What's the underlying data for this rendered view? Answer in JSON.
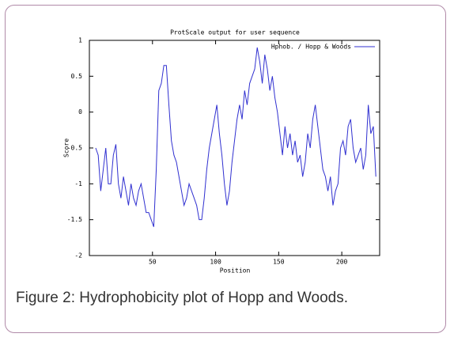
{
  "chart_data": {
    "type": "line",
    "title": "ProtScale output for user sequence",
    "xlabel": "Position",
    "ylabel": "Score",
    "caption": "Figure 2: Hydrophobicity plot of Hopp and Woods.",
    "xlim": [
      0,
      230
    ],
    "ylim": [
      -2,
      1
    ],
    "xticks": [
      50,
      100,
      150,
      200
    ],
    "yticks": [
      1,
      0.5,
      0,
      -0.5,
      -1,
      -1.5,
      -2
    ],
    "legend": "top-right",
    "series": [
      {
        "name": "Hphob. / Hopp & Woods",
        "color": "#3030d0",
        "x": [
          5,
          7,
          9,
          11,
          13,
          15,
          17,
          19,
          21,
          23,
          25,
          27,
          29,
          31,
          33,
          35,
          37,
          39,
          41,
          43,
          45,
          47,
          49,
          51,
          53,
          55,
          57,
          59,
          61,
          63,
          65,
          67,
          69,
          71,
          73,
          75,
          77,
          79,
          81,
          83,
          85,
          87,
          89,
          91,
          93,
          95,
          97,
          99,
          101,
          103,
          105,
          107,
          109,
          111,
          113,
          115,
          117,
          119,
          121,
          123,
          125,
          127,
          129,
          131,
          133,
          135,
          137,
          139,
          141,
          143,
          145,
          147,
          149,
          151,
          153,
          155,
          157,
          159,
          161,
          163,
          165,
          167,
          169,
          171,
          173,
          175,
          177,
          179,
          181,
          183,
          185,
          187,
          189,
          191,
          193,
          195,
          197,
          199,
          201,
          203,
          205,
          207,
          209,
          211,
          213,
          215,
          217,
          219,
          221,
          223,
          225,
          227
        ],
        "values": [
          -0.5,
          -0.6,
          -1.1,
          -0.8,
          -0.5,
          -1.0,
          -1.0,
          -0.6,
          -0.45,
          -1.0,
          -1.2,
          -0.9,
          -1.1,
          -1.3,
          -1.0,
          -1.2,
          -1.3,
          -1.1,
          -1.0,
          -1.2,
          -1.4,
          -1.4,
          -1.5,
          -1.6,
          -0.8,
          0.3,
          0.4,
          0.65,
          0.65,
          0.1,
          -0.4,
          -0.6,
          -0.7,
          -0.9,
          -1.1,
          -1.3,
          -1.2,
          -1.0,
          -1.1,
          -1.2,
          -1.3,
          -1.5,
          -1.5,
          -1.2,
          -0.8,
          -0.5,
          -0.3,
          -0.1,
          0.1,
          -0.3,
          -0.6,
          -1.0,
          -1.3,
          -1.1,
          -0.7,
          -0.4,
          -0.1,
          0.1,
          -0.1,
          0.3,
          0.1,
          0.4,
          0.5,
          0.6,
          0.9,
          0.7,
          0.4,
          0.8,
          0.6,
          0.3,
          0.5,
          0.2,
          0.0,
          -0.3,
          -0.6,
          -0.2,
          -0.5,
          -0.3,
          -0.6,
          -0.4,
          -0.7,
          -0.6,
          -0.9,
          -0.7,
          -0.3,
          -0.5,
          -0.1,
          0.1,
          -0.2,
          -0.5,
          -0.8,
          -0.9,
          -1.1,
          -0.9,
          -1.3,
          -1.1,
          -1.0,
          -0.5,
          -0.4,
          -0.6,
          -0.2,
          -0.1,
          -0.5,
          -0.7,
          -0.6,
          -0.5,
          -0.8,
          -0.6,
          0.1,
          -0.3,
          -0.2,
          -0.9
        ]
      }
    ]
  }
}
